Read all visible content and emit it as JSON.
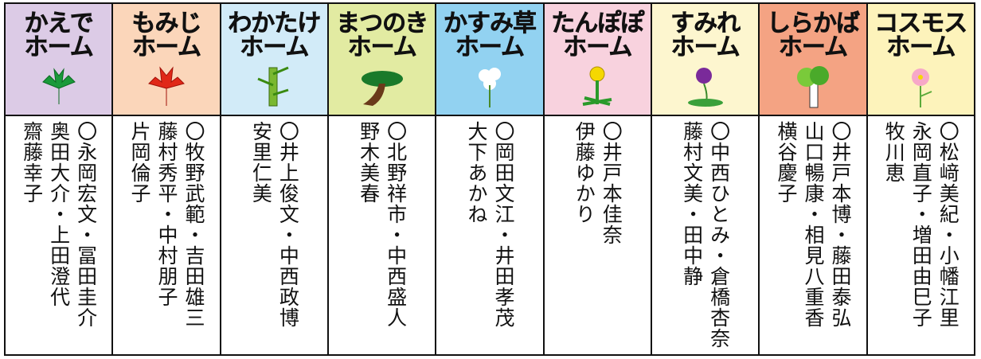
{
  "columns": [
    {
      "title": [
        "かえで",
        "ホーム"
      ],
      "color": "#dccbe6",
      "staff": [
        "〇永岡宏文・冨田圭介",
        "奥田大介・上田澄代",
        "齋藤幸子"
      ]
    },
    {
      "title": [
        "もみじ",
        "ホーム"
      ],
      "color": "#fbd6ba",
      "staff": [
        "〇牧野武範・吉田雄三",
        "藤村秀平・中村朋子",
        "片岡倫子"
      ]
    },
    {
      "title": [
        "わかたけ",
        "ホーム"
      ],
      "color": "#d2ebf8",
      "staff": [
        "〇井上俊文・中西政博",
        "安里仁美"
      ]
    },
    {
      "title": [
        "まつのき",
        "ホーム"
      ],
      "color": "#e2eba2",
      "staff": [
        "〇北野祥市・中西盛人",
        "野木美春"
      ]
    },
    {
      "title": [
        "かすみ草",
        "ホーム"
      ],
      "color": "#92d2f1",
      "staff": [
        "〇岡田文江・井田孝茂",
        "大下あかね"
      ]
    },
    {
      "title": [
        "たんぽぽ",
        "ホーム"
      ],
      "color": "#f8d2de",
      "staff": [
        "〇井戸本佳奈",
        "伊藤ゆかり"
      ]
    },
    {
      "title": [
        "すみれ",
        "ホーム"
      ],
      "color": "#fdf6cf",
      "staff": [
        "〇中西ひとみ・倉橋杏奈",
        "藤村文美・田中静"
      ]
    },
    {
      "title": [
        "しらかば",
        "ホーム"
      ],
      "color": "#f4a383",
      "staff": [
        "〇井戸本博・藤田泰弘",
        "山口暢康・相見八重香",
        "横谷慶子"
      ]
    },
    {
      "title": [
        "コスモス",
        "ホーム"
      ],
      "color": "#fdf3bb",
      "staff": [
        "〇松﨑美紀・小幡江里",
        "永岡直子・増田由巳子",
        "牧川恵"
      ]
    }
  ]
}
